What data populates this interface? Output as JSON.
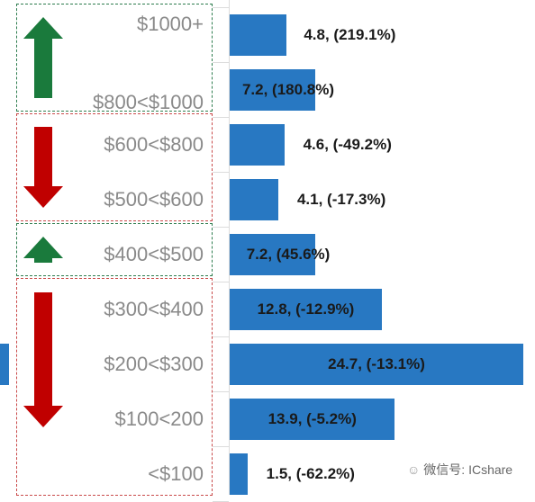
{
  "chart_data": {
    "type": "bar",
    "orientation": "horizontal",
    "categories": [
      "$1000+",
      "$800<$1000",
      "$600<$800",
      "$500<$600",
      "$400<$500",
      "$300<$400",
      "$200<$300",
      "$100<200",
      "<$100"
    ],
    "values": [
      4.8,
      7.2,
      4.6,
      4.1,
      7.2,
      12.8,
      24.7,
      13.9,
      1.5
    ],
    "bar_labels": [
      "4.8, (219.1%)",
      "7.2, (180.8%)",
      "4.6, (-49.2%)",
      "4.1, (-17.3%)",
      "7.2, (45.6%)",
      "12.8, (-12.9%)",
      "24.7, (-13.1%)",
      "13.9, (-5.2%)",
      "1.5, (-62.2%)"
    ],
    "xlim": [
      0,
      25
    ],
    "groups": [
      {
        "direction": "up",
        "categories": [
          "$1000+",
          "$800<$1000"
        ],
        "color": "#2e7d4f",
        "arrow_color": "#1a7a3c"
      },
      {
        "direction": "down",
        "categories": [
          "$600<$800",
          "$500<$600"
        ],
        "color": "#c94a4a",
        "arrow_color": "#c00000"
      },
      {
        "direction": "up",
        "categories": [
          "$400<$500"
        ],
        "color": "#2e7d4f",
        "arrow_color": "#1a7a3c"
      },
      {
        "direction": "down",
        "categories": [
          "$300<$400",
          "$200<$300",
          "$100<200",
          "<$100"
        ],
        "color": "#c94a4a",
        "arrow_color": "#c00000"
      }
    ],
    "bar_color": "#2878c2",
    "grid": false
  },
  "watermark": {
    "text": "微信号: ICshare",
    "icon": "wechat-icon"
  }
}
